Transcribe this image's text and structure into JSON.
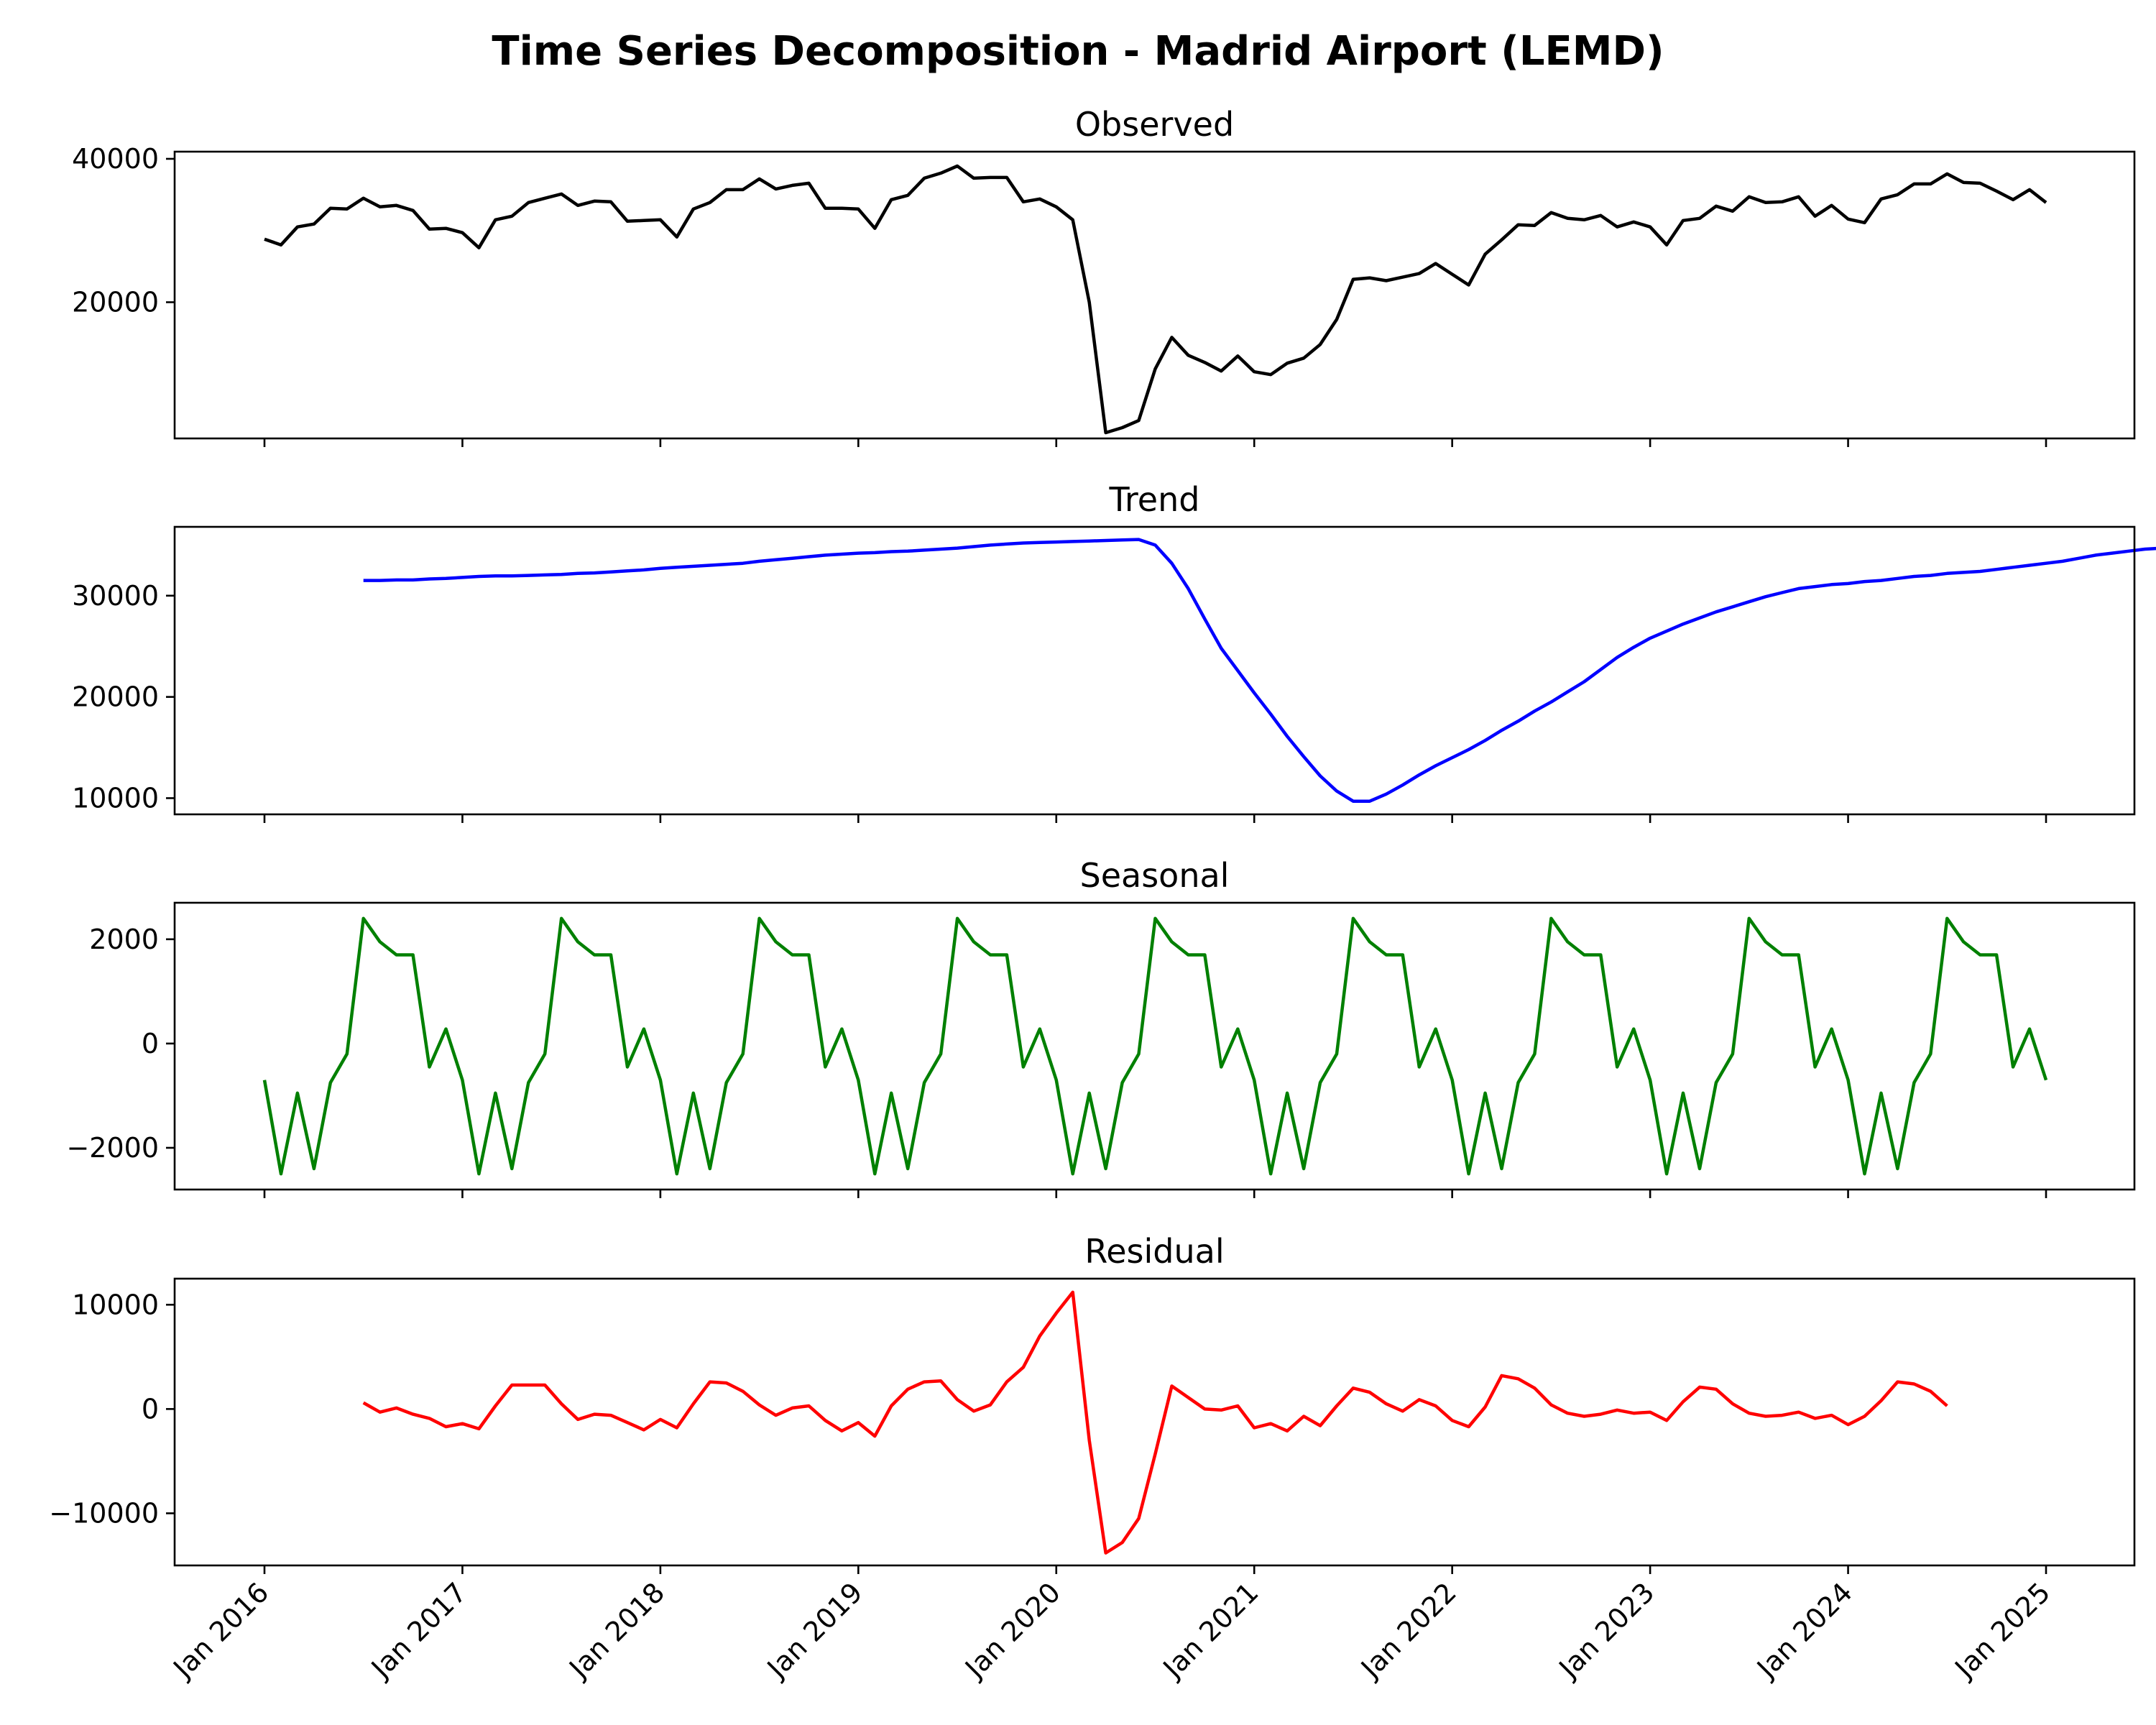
{
  "title": "Time Series Decomposition - Madrid Airport (LEMD)",
  "x_tick_labels": [
    "Jan 2016",
    "Jan 2017",
    "Jan 2018",
    "Jan 2019",
    "Jan 2020",
    "Jan 2021",
    "Jan 2022",
    "Jan 2023",
    "Jan 2024",
    "Jan 2025"
  ],
  "chart_data": [
    {
      "type": "line",
      "title": "Observed",
      "color": "#000000",
      "x_start": "2016-01",
      "x_freq": "monthly",
      "ylim": [
        1000,
        41000
      ],
      "yticks": [
        20000,
        40000
      ],
      "ytick_labels": [
        "20000",
        "40000"
      ],
      "values": [
        28800,
        28000,
        30500,
        30900,
        33100,
        33000,
        34500,
        33300,
        33500,
        32800,
        30200,
        30300,
        29700,
        27600,
        31500,
        32000,
        33900,
        34500,
        35100,
        33500,
        34100,
        34000,
        31300,
        31400,
        31500,
        29100,
        33000,
        33900,
        35700,
        35700,
        37200,
        35800,
        36300,
        36600,
        33100,
        33100,
        33000,
        30300,
        34300,
        34900,
        37300,
        38000,
        39000,
        37300,
        37400,
        37400,
        34000,
        34400,
        33300,
        31500,
        20000,
        1800,
        2500,
        3500,
        10700,
        15100,
        12600,
        11600,
        10400,
        12500,
        10300,
        9900,
        11500,
        12200,
        14100,
        17600,
        23200,
        23400,
        23000,
        23500,
        24000,
        25400,
        23900,
        22400,
        26700,
        28700,
        30800,
        30700,
        32500,
        31700,
        31500,
        32100,
        30500,
        31200,
        30500,
        28000,
        31400,
        31700,
        33400,
        32700,
        34700,
        33900,
        34000,
        34700,
        32000,
        33500,
        31600,
        31100,
        34400,
        35000,
        36500,
        36500,
        37900,
        36700,
        36600,
        35500,
        34300,
        35700,
        33900
      ]
    },
    {
      "type": "line",
      "title": "Trend",
      "color": "#0000ff",
      "x_start": "2016-07",
      "x_freq": "monthly",
      "ylim": [
        8400,
        36800
      ],
      "yticks": [
        10000,
        20000,
        30000
      ],
      "ytick_labels": [
        "10000",
        "20000",
        "30000"
      ],
      "values": [
        31500,
        31500,
        31550,
        31550,
        31650,
        31700,
        31800,
        31900,
        31950,
        31950,
        32000,
        32050,
        32100,
        32200,
        32250,
        32350,
        32450,
        32550,
        32700,
        32800,
        32900,
        33000,
        33100,
        33200,
        33400,
        33550,
        33700,
        33850,
        34000,
        34100,
        34200,
        34250,
        34350,
        34400,
        34500,
        34600,
        34700,
        34850,
        35000,
        35100,
        35200,
        35250,
        35300,
        35350,
        35400,
        35450,
        35500,
        35550,
        35000,
        33200,
        30700,
        27700,
        24800,
        22600,
        20400,
        18300,
        16100,
        14100,
        12200,
        10700,
        9700,
        9700,
        10400,
        11300,
        12300,
        13200,
        14000,
        14800,
        15700,
        16700,
        17600,
        18600,
        19500,
        20500,
        21500,
        22700,
        23900,
        24900,
        25800,
        26500,
        27200,
        27800,
        28400,
        28900,
        29400,
        29900,
        30300,
        30700,
        30900,
        31100,
        31200,
        31400,
        31500,
        31700,
        31900,
        32000,
        32200,
        32300,
        32400,
        32600,
        32800,
        33000,
        33200,
        33400,
        33700,
        34000,
        34200,
        34400,
        34600,
        34700,
        34800,
        34900,
        35100
      ]
    },
    {
      "type": "line",
      "title": "Seasonal",
      "color": "#008000",
      "x_start": "2016-01",
      "x_freq": "monthly",
      "ylim": [
        -2800,
        2700
      ],
      "yticks": [
        -2000,
        0,
        2000
      ],
      "ytick_labels": [
        "−2000",
        "0",
        "2000"
      ],
      "seasonal_pattern": [
        -700,
        -2500,
        -950,
        -2400,
        -750,
        -200,
        2400,
        1950,
        1700,
        1700,
        -450,
        280
      ],
      "n_points": 109
    },
    {
      "type": "line",
      "title": "Residual",
      "color": "#ff0000",
      "x_start": "2016-07",
      "x_freq": "monthly",
      "ylim": [
        -15000,
        12500
      ],
      "yticks": [
        -10000,
        0,
        10000
      ],
      "ytick_labels": [
        "−10000",
        "0",
        "10000"
      ],
      "values": [
        600,
        -300,
        100,
        -500,
        -900,
        -1700,
        -1400,
        -1900,
        300,
        2300,
        2300,
        2300,
        500,
        -1000,
        -500,
        -600,
        -1300,
        -2000,
        -1000,
        -1800,
        500,
        2600,
        2500,
        1700,
        400,
        -600,
        100,
        300,
        -1100,
        -2100,
        -1300,
        -2600,
        300,
        1900,
        2600,
        2700,
        900,
        -200,
        400,
        2600,
        4000,
        7000,
        9200,
        11200,
        -3000,
        -13800,
        -12800,
        -10500,
        -4300,
        2200,
        1100,
        0,
        -100,
        300,
        -1800,
        -1400,
        -2100,
        -700,
        -1600,
        300,
        2000,
        1600,
        500,
        -200,
        900,
        300,
        -1100,
        -1700,
        200,
        3200,
        2900,
        2000,
        400,
        -400,
        -700,
        -500,
        -100,
        -400,
        -300,
        -1100,
        700,
        2100,
        1900,
        500,
        -400,
        -700,
        -600,
        -300,
        -900,
        -600,
        -1500,
        -700,
        800,
        2600,
        2400,
        1700,
        300
      ]
    }
  ]
}
